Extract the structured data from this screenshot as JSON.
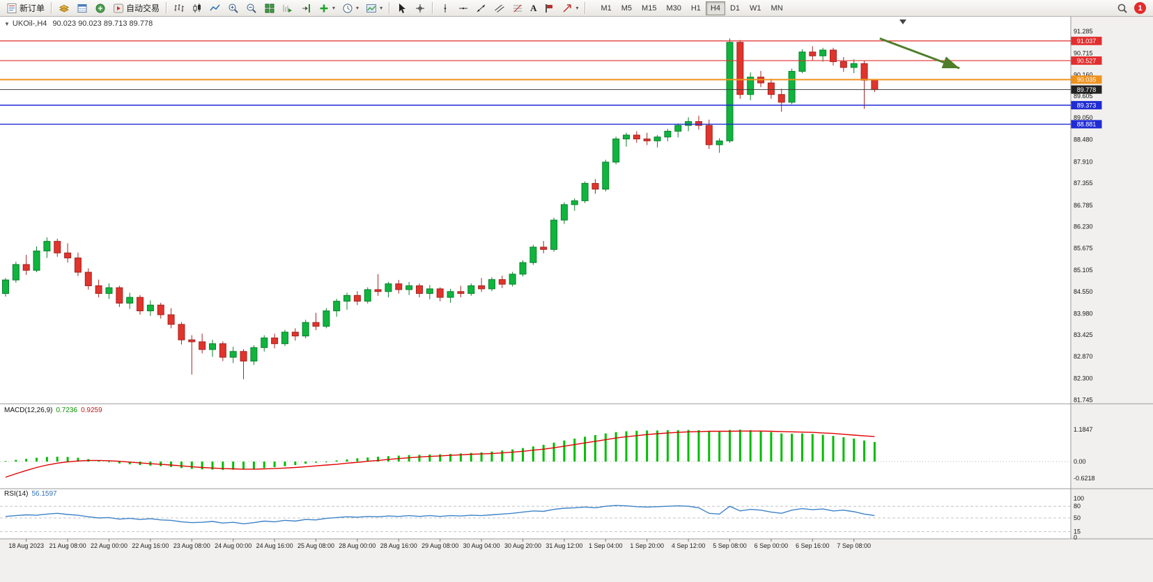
{
  "toolbar": {
    "new_order_label": "新订单",
    "auto_trading_label": "自动交易",
    "text_tool_label": "A",
    "timeframes": [
      "M1",
      "M5",
      "M15",
      "M30",
      "H1",
      "H4",
      "D1",
      "W1",
      "MN"
    ],
    "active_timeframe": "H4",
    "notification_count": "1"
  },
  "chart_data": {
    "type": "candlestick",
    "title": "UKOil-,H4",
    "collapse_glyph": "▼",
    "ohlc_text": "90.023 90.023 89.713 89.778",
    "up_color": "#0fb53e",
    "down_color": "#e1342c",
    "up_border": "#0a7f2c",
    "down_border": "#a32420",
    "price_axis": [
      "91.285",
      "90.715",
      "90.160",
      "89.605",
      "89.050",
      "88.480",
      "87.910",
      "87.355",
      "86.785",
      "86.230",
      "85.675",
      "85.105",
      "84.550",
      "83.980",
      "83.425",
      "82.870",
      "82.300",
      "81.745"
    ],
    "x_labels": [
      "18 Aug 2023",
      "21 Aug 08:00",
      "22 Aug 00:00",
      "22 Aug 16:00",
      "23 Aug 08:00",
      "24 Aug 00:00",
      "24 Aug 16:00",
      "25 Aug 08:00",
      "28 Aug 00:00",
      "28 Aug 16:00",
      "29 Aug 08:00",
      "30 Aug 04:00",
      "30 Aug 20:00",
      "31 Aug 12:00",
      "1 Sep 04:00",
      "1 Sep 20:00",
      "4 Sep 12:00",
      "5 Sep 08:00",
      "6 Sep 00:00",
      "6 Sep 16:00",
      "7 Sep 08:00"
    ],
    "label_first_bar": 2,
    "label_step_bars": 4,
    "h_lines": [
      {
        "price": 91.037,
        "label": "91.037",
        "color": "#e22e2e",
        "width": 1.2
      },
      {
        "price": 90.527,
        "label": "90.527",
        "color": "#e22e2e",
        "width": 1.2
      },
      {
        "price": 90.035,
        "label": "90.035",
        "color": "#f0921e",
        "width": 2
      },
      {
        "price": 89.778,
        "label": "89.778",
        "color": "#3c3c3c",
        "badge": "#222222",
        "width": 1,
        "role": "current-price"
      },
      {
        "price": 89.373,
        "label": "89.373",
        "color": "#1f2bd4",
        "width": 1.4
      },
      {
        "price": 88.881,
        "label": "88.881",
        "color": "#1f2bd4",
        "width": 1.4
      }
    ],
    "annotation": {
      "shape": "arrow",
      "from": {
        "bar": 84.5,
        "price": 91.1
      },
      "to": {
        "bar": 92.2,
        "price": 90.33
      },
      "color": "#4f7d2a"
    },
    "candles": [
      [
        84.5,
        84.9,
        84.42,
        84.85
      ],
      [
        84.85,
        85.32,
        84.78,
        85.25
      ],
      [
        85.25,
        85.5,
        84.98,
        85.1
      ],
      [
        85.1,
        85.72,
        85.05,
        85.6
      ],
      [
        85.6,
        85.95,
        85.42,
        85.85
      ],
      [
        85.85,
        85.92,
        85.45,
        85.55
      ],
      [
        85.55,
        85.8,
        85.3,
        85.42
      ],
      [
        85.42,
        85.56,
        84.95,
        85.05
      ],
      [
        85.05,
        85.15,
        84.6,
        84.7
      ],
      [
        84.7,
        84.86,
        84.4,
        84.5
      ],
      [
        84.5,
        84.76,
        84.36,
        84.65
      ],
      [
        84.65,
        84.7,
        84.15,
        84.25
      ],
      [
        84.25,
        84.52,
        84.1,
        84.4
      ],
      [
        84.4,
        84.46,
        83.95,
        84.05
      ],
      [
        84.05,
        84.32,
        83.92,
        84.2
      ],
      [
        84.2,
        84.26,
        83.85,
        83.95
      ],
      [
        83.95,
        84.12,
        83.6,
        83.7
      ],
      [
        83.7,
        83.76,
        83.18,
        83.3
      ],
      [
        83.3,
        83.42,
        82.4,
        83.25
      ],
      [
        83.25,
        83.46,
        82.95,
        83.05
      ],
      [
        83.05,
        83.3,
        82.86,
        83.2
      ],
      [
        83.2,
        83.26,
        82.75,
        82.85
      ],
      [
        82.85,
        83.12,
        82.7,
        83.0
      ],
      [
        83.0,
        83.06,
        82.28,
        82.75
      ],
      [
        82.75,
        83.16,
        82.65,
        83.1
      ],
      [
        83.1,
        83.42,
        83.0,
        83.35
      ],
      [
        83.35,
        83.46,
        83.08,
        83.2
      ],
      [
        83.2,
        83.56,
        83.14,
        83.5
      ],
      [
        83.5,
        83.6,
        83.28,
        83.4
      ],
      [
        83.4,
        83.82,
        83.34,
        83.75
      ],
      [
        83.75,
        84.0,
        83.55,
        83.65
      ],
      [
        83.65,
        84.12,
        83.6,
        84.05
      ],
      [
        84.05,
        84.36,
        83.9,
        84.3
      ],
      [
        84.3,
        84.52,
        84.08,
        84.45
      ],
      [
        84.45,
        84.56,
        84.2,
        84.3
      ],
      [
        84.3,
        84.66,
        84.24,
        84.6
      ],
      [
        84.6,
        85.0,
        84.44,
        84.55
      ],
      [
        84.55,
        84.8,
        84.4,
        84.75
      ],
      [
        84.75,
        84.85,
        84.5,
        84.6
      ],
      [
        84.6,
        84.8,
        84.46,
        84.7
      ],
      [
        84.7,
        84.76,
        84.4,
        84.5
      ],
      [
        84.5,
        84.72,
        84.35,
        84.62
      ],
      [
        84.62,
        84.66,
        84.3,
        84.4
      ],
      [
        84.4,
        84.62,
        84.26,
        84.55
      ],
      [
        84.55,
        84.7,
        84.4,
        84.5
      ],
      [
        84.5,
        84.76,
        84.44,
        84.7
      ],
      [
        84.7,
        84.9,
        84.54,
        84.62
      ],
      [
        84.62,
        84.92,
        84.56,
        84.86
      ],
      [
        84.86,
        84.96,
        84.64,
        84.74
      ],
      [
        84.74,
        85.06,
        84.68,
        85.0
      ],
      [
        85.0,
        85.36,
        84.94,
        85.3
      ],
      [
        85.3,
        85.76,
        85.24,
        85.7
      ],
      [
        85.7,
        85.86,
        85.54,
        85.64
      ],
      [
        85.64,
        86.46,
        85.58,
        86.4
      ],
      [
        86.4,
        86.86,
        86.3,
        86.8
      ],
      [
        86.8,
        86.96,
        86.64,
        86.9
      ],
      [
        86.9,
        87.4,
        86.84,
        87.35
      ],
      [
        87.35,
        87.46,
        87.08,
        87.2
      ],
      [
        87.2,
        87.96,
        87.14,
        87.9
      ],
      [
        87.9,
        88.56,
        87.84,
        88.5
      ],
      [
        88.5,
        88.66,
        88.3,
        88.6
      ],
      [
        88.6,
        88.7,
        88.4,
        88.5
      ],
      [
        88.5,
        88.66,
        88.34,
        88.45
      ],
      [
        88.45,
        88.6,
        88.28,
        88.55
      ],
      [
        88.55,
        88.76,
        88.44,
        88.7
      ],
      [
        88.7,
        88.9,
        88.54,
        88.85
      ],
      [
        88.85,
        89.06,
        88.7,
        88.95
      ],
      [
        88.95,
        89.1,
        88.74,
        88.85
      ],
      [
        88.85,
        89.0,
        88.24,
        88.35
      ],
      [
        88.35,
        88.52,
        88.14,
        88.45
      ],
      [
        88.45,
        91.1,
        88.4,
        91.0
      ],
      [
        91.0,
        91.06,
        89.54,
        89.65
      ],
      [
        89.65,
        90.22,
        89.5,
        90.1
      ],
      [
        90.1,
        90.26,
        89.84,
        89.95
      ],
      [
        89.95,
        90.06,
        89.54,
        89.65
      ],
      [
        89.65,
        89.8,
        89.2,
        89.45
      ],
      [
        89.45,
        90.32,
        89.4,
        90.25
      ],
      [
        90.25,
        90.82,
        90.2,
        90.75
      ],
      [
        90.75,
        90.9,
        90.54,
        90.65
      ],
      [
        90.65,
        90.86,
        90.5,
        90.8
      ],
      [
        90.8,
        90.86,
        90.4,
        90.5
      ],
      [
        90.5,
        90.62,
        90.24,
        90.35
      ],
      [
        90.35,
        90.56,
        90.2,
        90.45
      ],
      [
        90.45,
        90.52,
        89.28,
        90.02
      ],
      [
        90.023,
        90.023,
        89.713,
        89.778
      ]
    ],
    "indicators": [
      {
        "name": "MACD",
        "title": "MACD(12,26,9)",
        "value_main": "0.7236",
        "value_signal": "0.9259",
        "histogram_color": "#00bd00",
        "signal_color": "#e00000",
        "axis_ticks": [
          {
            "value": 1.1847,
            "label": "1.1847"
          },
          {
            "value": 0,
            "label": "0.00"
          },
          {
            "value": -0.6218,
            "label": "-0.6218"
          }
        ],
        "histogram": [
          0.02,
          0.06,
          0.1,
          0.14,
          0.17,
          0.18,
          0.17,
          0.14,
          0.09,
          0.03,
          -0.02,
          -0.07,
          -0.1,
          -0.13,
          -0.15,
          -0.17,
          -0.2,
          -0.24,
          -0.27,
          -0.29,
          -0.3,
          -0.31,
          -0.3,
          -0.29,
          -0.27,
          -0.24,
          -0.21,
          -0.17,
          -0.13,
          -0.08,
          -0.04,
          0.0,
          0.04,
          0.08,
          0.12,
          0.15,
          0.18,
          0.2,
          0.22,
          0.24,
          0.25,
          0.26,
          0.27,
          0.28,
          0.3,
          0.32,
          0.34,
          0.37,
          0.41,
          0.45,
          0.5,
          0.56,
          0.62,
          0.7,
          0.78,
          0.85,
          0.92,
          0.98,
          1.04,
          1.09,
          1.12,
          1.14,
          1.15,
          1.15,
          1.16,
          1.16,
          1.17,
          1.16,
          1.13,
          1.1,
          1.17,
          1.18,
          1.16,
          1.13,
          1.09,
          1.04,
          1.03,
          1.04,
          1.02,
          0.99,
          0.95,
          0.9,
          0.85,
          0.78,
          0.7236
        ],
        "signal": [
          -0.58,
          -0.45,
          -0.33,
          -0.22,
          -0.13,
          -0.06,
          -0.01,
          0.02,
          0.04,
          0.04,
          0.03,
          0.01,
          -0.02,
          -0.05,
          -0.08,
          -0.1,
          -0.13,
          -0.16,
          -0.19,
          -0.22,
          -0.24,
          -0.26,
          -0.27,
          -0.28,
          -0.28,
          -0.27,
          -0.26,
          -0.24,
          -0.22,
          -0.19,
          -0.16,
          -0.13,
          -0.1,
          -0.06,
          -0.03,
          0.01,
          0.04,
          0.08,
          0.11,
          0.14,
          0.17,
          0.19,
          0.21,
          0.23,
          0.25,
          0.27,
          0.28,
          0.3,
          0.32,
          0.35,
          0.38,
          0.42,
          0.46,
          0.51,
          0.57,
          0.63,
          0.69,
          0.75,
          0.81,
          0.87,
          0.92,
          0.96,
          1.0,
          1.03,
          1.06,
          1.08,
          1.1,
          1.11,
          1.12,
          1.12,
          1.12,
          1.13,
          1.13,
          1.13,
          1.12,
          1.11,
          1.1,
          1.09,
          1.08,
          1.06,
          1.04,
          1.01,
          0.98,
          0.95,
          0.9259
        ]
      },
      {
        "name": "RSI",
        "title": "RSI(14)",
        "value": "56.1597",
        "color": "#3c82c8",
        "axis_ticks": [
          100,
          80,
          50,
          15,
          0
        ],
        "levels": [
          80,
          50,
          15
        ],
        "values": [
          54,
          56,
          58,
          57,
          60,
          62,
          59,
          57,
          53,
          50,
          51,
          47,
          49,
          46,
          48,
          45,
          44,
          40,
          38,
          39,
          41,
          37,
          39,
          35,
          38,
          42,
          40,
          44,
          42,
          46,
          45,
          49,
          51,
          53,
          52,
          54,
          53,
          55,
          54,
          56,
          54,
          56,
          54,
          56,
          55,
          57,
          56,
          58,
          60,
          62,
          65,
          68,
          67,
          72,
          75,
          76,
          78,
          76,
          80,
          82,
          81,
          79,
          78,
          79,
          80,
          81,
          80,
          76,
          62,
          60,
          80,
          68,
          72,
          70,
          65,
          62,
          70,
          74,
          71,
          73,
          68,
          70,
          66,
          60,
          56.16
        ]
      }
    ]
  }
}
